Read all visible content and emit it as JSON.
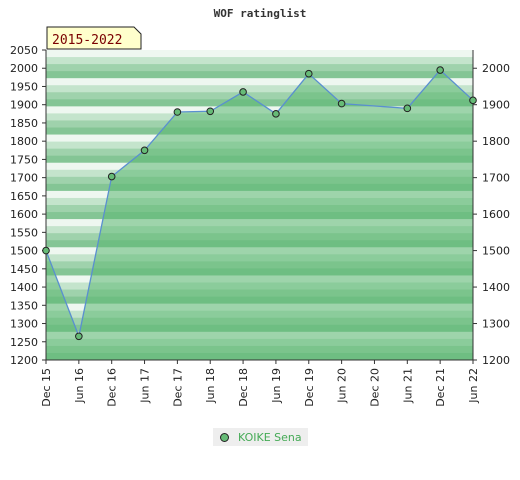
{
  "chart_data": {
    "type": "area",
    "title": "WOF ratinglist",
    "badge": "2015-2022",
    "categories": [
      "Dec 15",
      "Jun 16",
      "Dec 16",
      "Jun 17",
      "Dec 17",
      "Jun 18",
      "Dec 18",
      "Jun 19",
      "Dec 19",
      "Jun 20",
      "Dec 20",
      "Jun 21",
      "Dec 21",
      "Jun 22"
    ],
    "series": [
      {
        "name": "KOIKE Sena",
        "color": "#66bb77",
        "points": [
          {
            "x": 0,
            "y": 1500
          },
          {
            "x": 1,
            "y": 1265
          },
          {
            "x": 2,
            "y": 1703
          },
          {
            "x": 3,
            "y": 1775
          },
          {
            "x": 4,
            "y": 1880
          },
          {
            "x": 5,
            "y": 1882
          },
          {
            "x": 6,
            "y": 1935
          },
          {
            "x": 7,
            "y": 1875
          },
          {
            "x": 8,
            "y": 1985
          },
          {
            "x": 9,
            "y": 1903
          },
          {
            "x": 11,
            "y": 1890
          },
          {
            "x": 12,
            "y": 1995
          },
          {
            "x": 13,
            "y": 1912
          }
        ]
      }
    ],
    "y_left": {
      "ticks": [
        1200,
        1250,
        1300,
        1350,
        1400,
        1450,
        1500,
        1550,
        1600,
        1650,
        1700,
        1750,
        1800,
        1850,
        1900,
        1950,
        2000,
        2050
      ],
      "ylim": [
        1200,
        2050
      ]
    },
    "y_right": {
      "ticks": [
        1200,
        1300,
        1400,
        1500,
        1600,
        1700,
        1800,
        1900,
        2000
      ]
    },
    "legend_position": "bottom-center"
  }
}
